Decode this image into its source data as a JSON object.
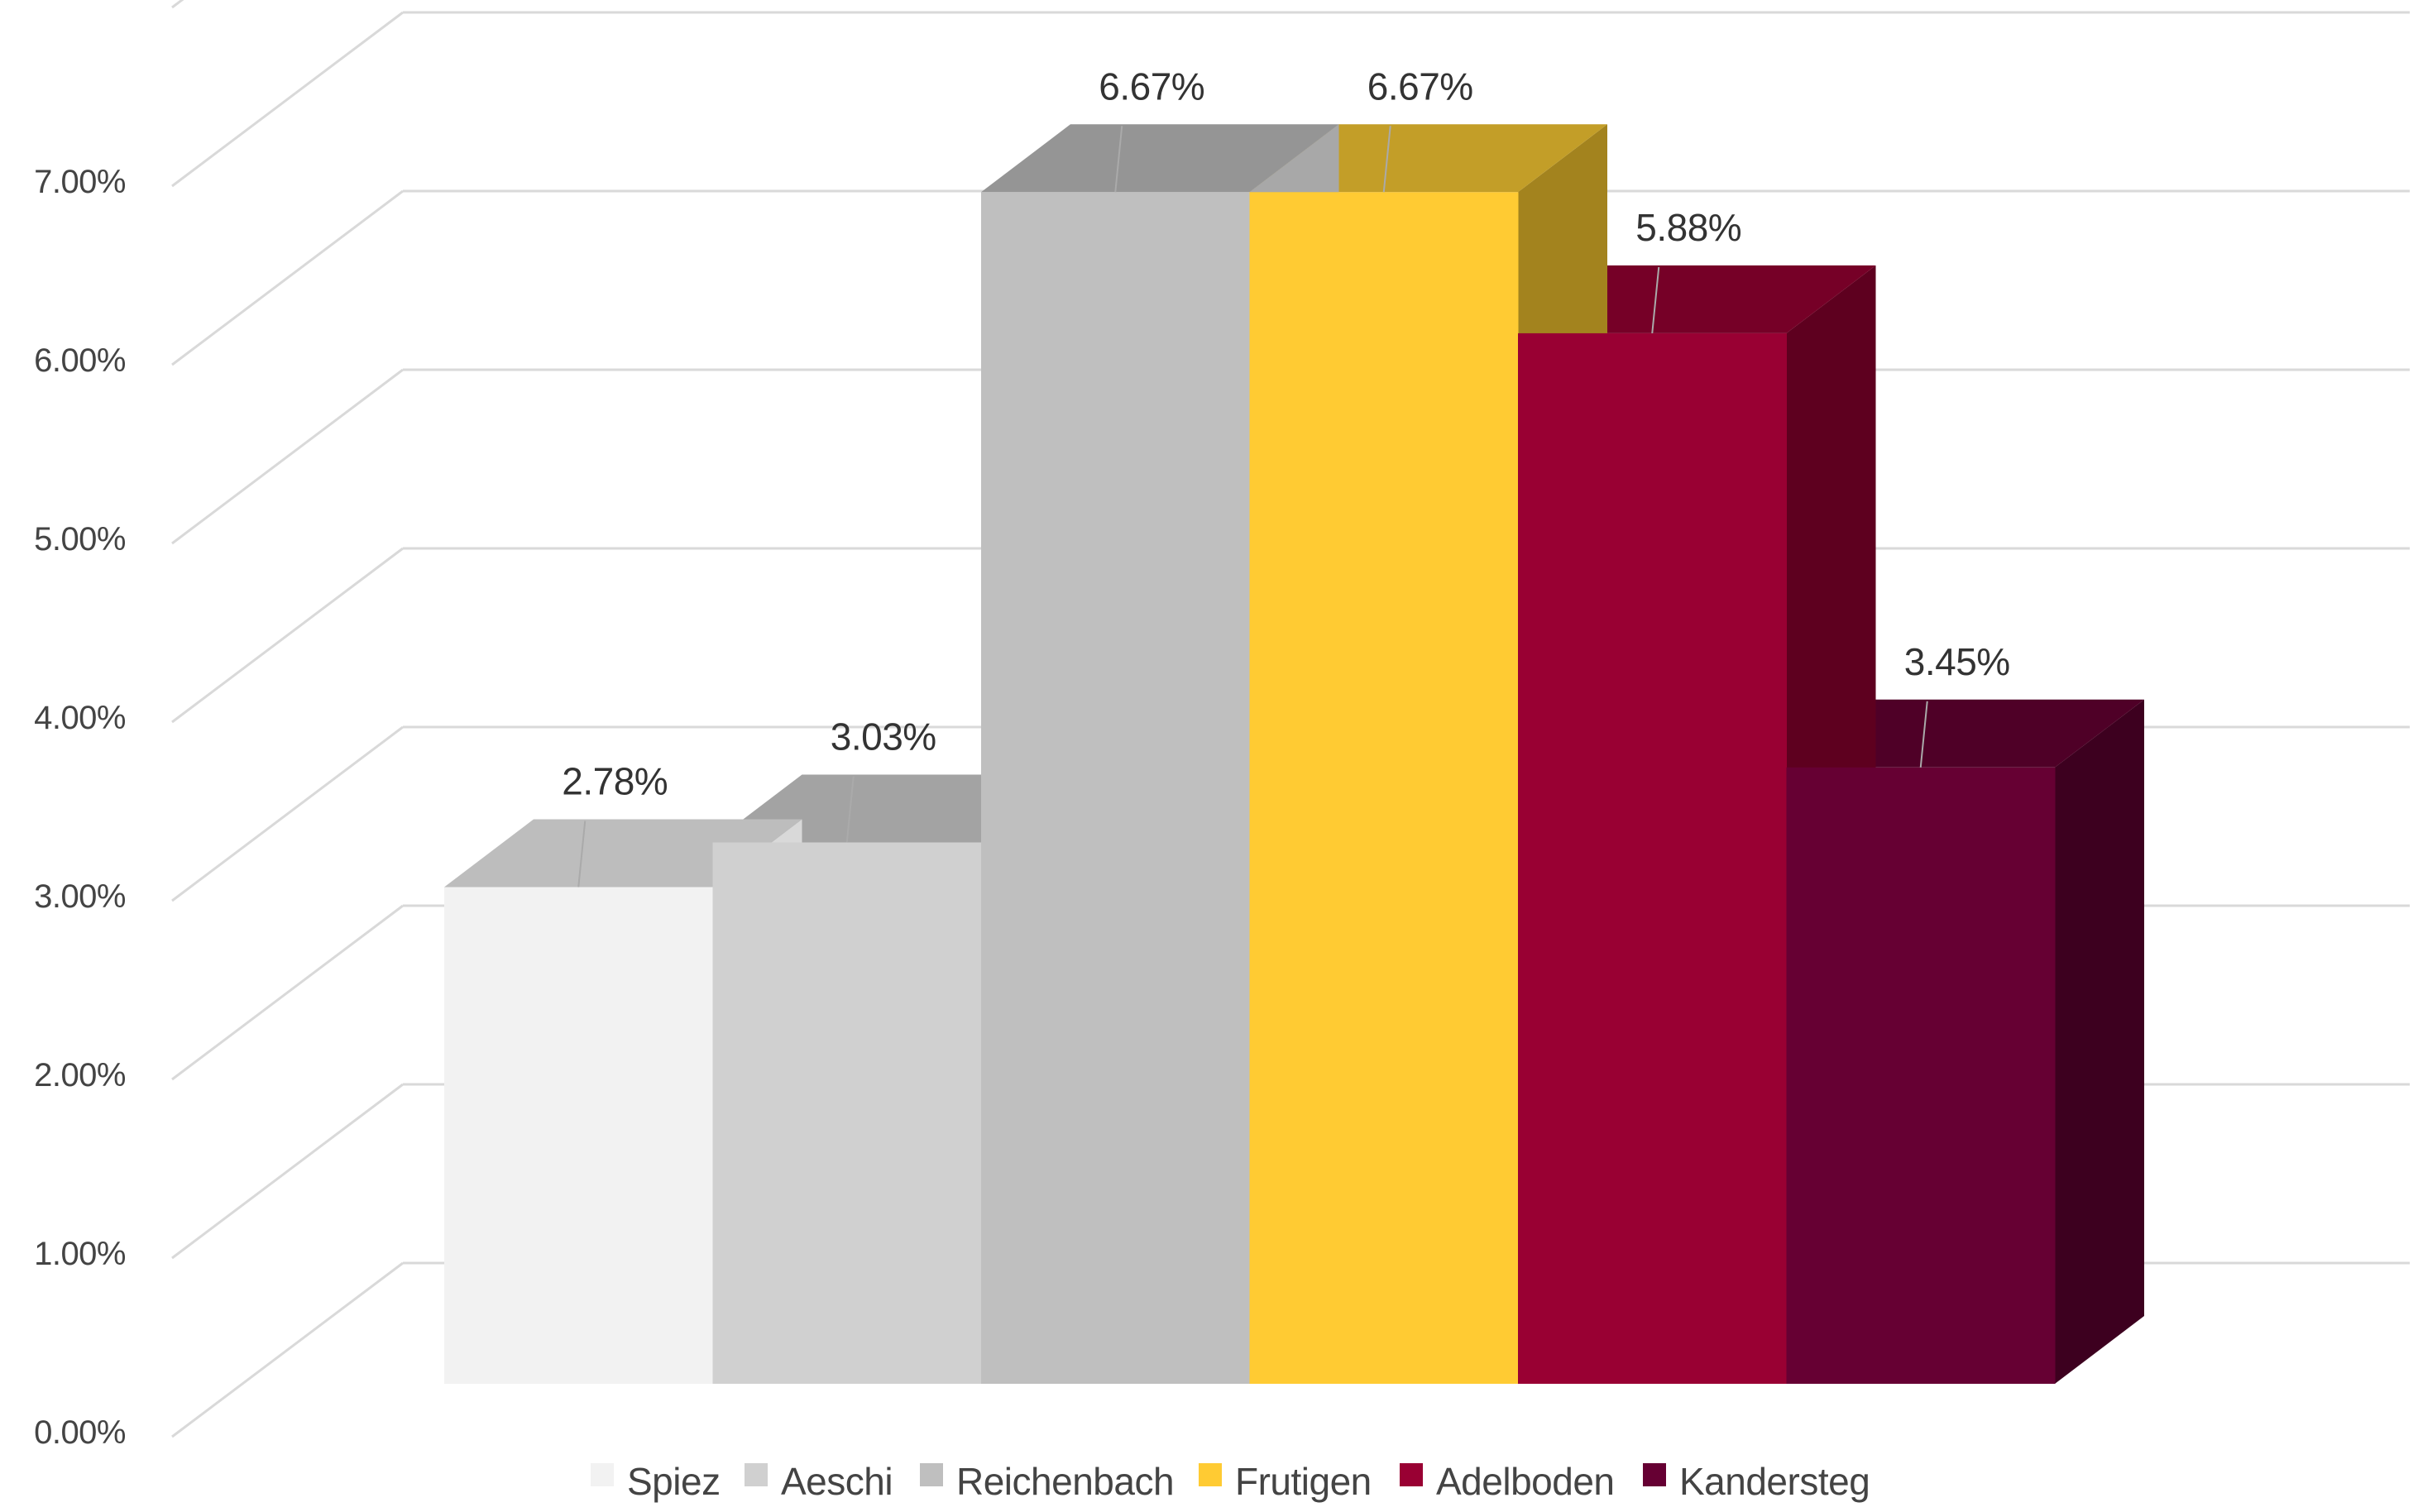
{
  "chart_data": {
    "type": "bar",
    "style": "3d-column",
    "categories": [
      "Spiez",
      "Aeschi",
      "Reichenbach",
      "Frutigen",
      "Adelboden",
      "Kandersteg"
    ],
    "values": [
      2.78,
      3.03,
      6.67,
      6.67,
      5.88,
      3.45
    ],
    "data_labels": [
      "2.78%",
      "3.03%",
      "6.67%",
      "6.67%",
      "5.88%",
      "3.45%"
    ],
    "y_ticks": [
      "0.00%",
      "1.00%",
      "2.00%",
      "3.00%",
      "4.00%",
      "5.00%",
      "6.00%",
      "7.00%"
    ],
    "ylim": [
      0,
      7.0
    ],
    "grid": true,
    "legend_position": "bottom",
    "colors": {
      "front": [
        "#f2f2f2",
        "#d0d0d0",
        "#bfbfbf",
        "#ffcb33",
        "#990033",
        "#660033"
      ],
      "top": [
        "#bdbdbd",
        "#a3a3a3",
        "#959595",
        "#c39e28",
        "#760027",
        "#4f0027"
      ],
      "side": [
        "#d9d9d9",
        "#bababa",
        "#a8a8a8",
        "#a3831e",
        "#5e001f",
        "#3d001f"
      ],
      "grid": "#d9d9d9",
      "leader": "#aaaaaa"
    }
  }
}
